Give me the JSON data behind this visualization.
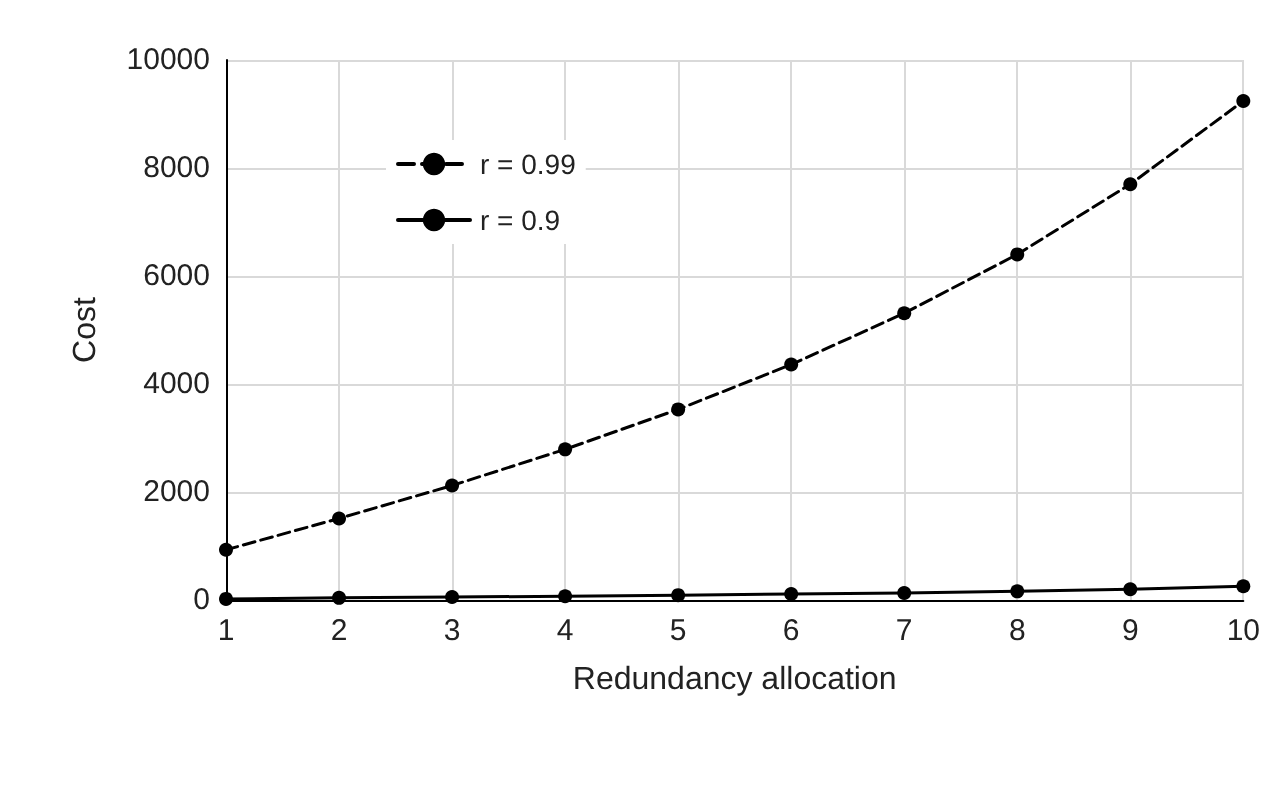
{
  "chart_data": {
    "type": "line",
    "xlabel": "Redundancy allocation",
    "ylabel": "Cost",
    "x": [
      1,
      2,
      3,
      4,
      5,
      6,
      7,
      8,
      9,
      10
    ],
    "xlim": [
      1,
      10
    ],
    "xticks": [
      1,
      2,
      3,
      4,
      5,
      6,
      7,
      8,
      9,
      10
    ],
    "ylim": [
      0,
      10000
    ],
    "yticks": [
      0,
      2000,
      4000,
      6000,
      8000,
      10000
    ],
    "grid": true,
    "legend": "top left",
    "marker": "circle",
    "series": [
      {
        "name": "r = 0.99",
        "color": "#000000",
        "line_style": "dashed",
        "values": [
          930,
          1510,
          2120,
          2790,
          3530,
          4360,
          5310,
          6400,
          7700,
          9240
        ]
      },
      {
        "name": "r = 0.9",
        "color": "#000000",
        "line_style": "solid",
        "values": [
          20,
          40,
          55,
          70,
          90,
          110,
          130,
          160,
          200,
          255
        ]
      }
    ]
  }
}
